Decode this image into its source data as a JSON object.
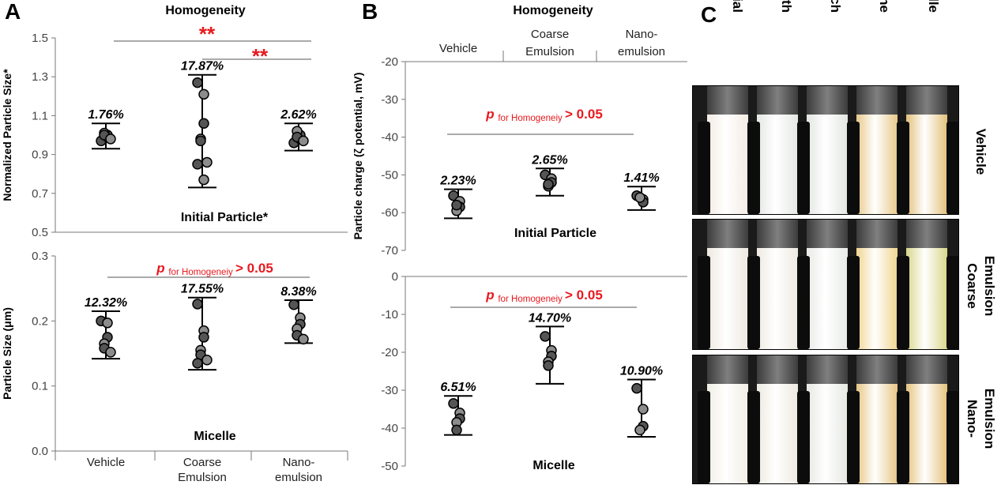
{
  "panel_letters": [
    "A",
    "B",
    "C"
  ],
  "significance_marks": [
    "**",
    "**"
  ],
  "p_annotation": {
    "p": "p",
    "sub": "for Homogeneiy",
    "rest": "> 0.05"
  },
  "colors": {
    "significance": "#e8191e",
    "point_fill": "#8c8c8c",
    "point_fill_dark": "#555555",
    "axis": "#333333"
  },
  "photo": {
    "columns": [
      "Initial",
      "Mouth",
      "Stomach",
      "Intestine",
      "Micelle"
    ],
    "rows": [
      {
        "label": "Vehicle",
        "tube_colors": [
          "#f4ebe4",
          "#e4e7e4",
          "#e2e6e2",
          "#e8c98a",
          "#e2c07a"
        ]
      },
      {
        "label": "Coarse Emulsion",
        "tube_colors": [
          "#eee8df",
          "#eeeae2",
          "#e9ebe8",
          "#f0d590",
          "#d8d68a"
        ]
      },
      {
        "label": "Nano-Emulsion",
        "tube_colors": [
          "#f1eee4",
          "#eceae0",
          "#e6e8e2",
          "#e6c685",
          "#e5c27d"
        ]
      }
    ]
  },
  "chart_data": [
    {
      "panel": "A-top",
      "type": "scatter",
      "title": "Homogeneity",
      "subtitle": "Initial Particle*",
      "ylabel": "Normalized Particle Size*",
      "categories": [
        "Vehicle",
        "Coarse Emulsion",
        "Nano-emulsion"
      ],
      "ylim": [
        0.5,
        1.5
      ],
      "yticks": [
        "0.5",
        "0.7",
        "0.9",
        "1.1",
        "1.3",
        "1.5"
      ],
      "series": [
        {
          "category": "Vehicle",
          "cv_label": "1.76%",
          "mean": 1.0,
          "err_low": 0.93,
          "err_high": 1.06,
          "points": [
            0.97,
            0.99,
            1.0,
            1.01,
            1.0,
            0.98
          ]
        },
        {
          "category": "Coarse Emulsion",
          "cv_label": "17.87%",
          "mean": 1.0,
          "err_low": 0.73,
          "err_high": 1.31,
          "points": [
            1.27,
            1.21,
            1.06,
            0.98,
            0.97,
            0.86,
            0.85,
            0.77
          ]
        },
        {
          "category": "Nano-emulsion",
          "cv_label": "2.62%",
          "mean": 1.0,
          "err_low": 0.92,
          "err_high": 1.06,
          "points": [
            0.96,
            0.98,
            1.0,
            1.02,
            0.99,
            0.97
          ]
        }
      ],
      "significance": [
        {
          "from": "Vehicle",
          "to": "Nano-emulsion",
          "y": 1.48,
          "label": "**"
        },
        {
          "from": "Coarse Emulsion",
          "to": "Nano-emulsion",
          "y": 1.39,
          "label": "**"
        }
      ]
    },
    {
      "panel": "A-bottom",
      "type": "scatter",
      "subtitle": "Micelle",
      "ylabel": "Particle Size (μm)",
      "categories": [
        "Vehicle",
        "Coarse Emulsion",
        "Nano-emulsion"
      ],
      "ylim": [
        0.0,
        0.3
      ],
      "yticks": [
        "0.0",
        "0.1",
        "0.2",
        "0.3"
      ],
      "series": [
        {
          "category": "Vehicle",
          "cv_label": "12.32%",
          "mean": 0.18,
          "err_low": 0.142,
          "err_high": 0.215,
          "points": [
            0.2,
            0.197,
            0.175,
            0.165,
            0.158,
            0.152
          ]
        },
        {
          "category": "Coarse Emulsion",
          "cv_label": "17.55%",
          "mean": 0.176,
          "err_low": 0.125,
          "err_high": 0.236,
          "points": [
            0.226,
            0.185,
            0.175,
            0.155,
            0.148,
            0.14,
            0.135
          ]
        },
        {
          "category": "Nano-emulsion",
          "cv_label": "8.38%",
          "mean": 0.2,
          "err_low": 0.166,
          "err_high": 0.232,
          "points": [
            0.225,
            0.205,
            0.195,
            0.188,
            0.178,
            0.172
          ]
        }
      ],
      "p_line": {
        "from": "Vehicle",
        "to": "Nano-emulsion",
        "y": 0.263
      }
    },
    {
      "panel": "B-top",
      "type": "scatter",
      "title": "Homogeneity",
      "subtitle": "Initial Particle",
      "ylabel": "Particle charge (ζ potential, mV)",
      "categories": [
        "Vehicle",
        "Coarse Emulsion",
        "Nano-emulsion"
      ],
      "ylim": [
        -70,
        -20
      ],
      "yticks": [
        "-70",
        "-60",
        "-50",
        "-40",
        "-30",
        "-20"
      ],
      "series": [
        {
          "category": "Vehicle",
          "cv_label": "2.23%",
          "mean": -57.5,
          "err_low": -61.5,
          "err_high": -53.8,
          "points": [
            -55.5,
            -57.0,
            -58.5,
            -59.5,
            -58.0
          ]
        },
        {
          "category": "Coarse Emulsion",
          "cv_label": "2.65%",
          "mean": -51.8,
          "err_low": -55.5,
          "err_high": -48.3,
          "points": [
            -50.0,
            -51.0,
            -52.0,
            -53.0,
            -52.5
          ]
        },
        {
          "category": "Nano-emulsion",
          "cv_label": "1.41%",
          "mean": -56.2,
          "err_low": -59.3,
          "err_high": -53.1,
          "points": [
            -55.5,
            -56.5,
            -57.2,
            -56.0
          ]
        }
      ],
      "p_line": {
        "from": "Vehicle",
        "to": "Nano-emulsion",
        "y": -39.8
      }
    },
    {
      "panel": "B-bottom",
      "type": "scatter",
      "subtitle": "Micelle",
      "categories": [
        "Vehicle",
        "Coarse Emulsion",
        "Nano-emulsion"
      ],
      "ylim": [
        -50,
        0
      ],
      "yticks": [
        "-50",
        "-40",
        "-30",
        "-20",
        "-10",
        "0"
      ],
      "series": [
        {
          "category": "Vehicle",
          "cv_label": "6.51%",
          "mean": -37,
          "err_low": -41.8,
          "err_high": -31.5,
          "points": [
            -33.5,
            -36.0,
            -37.5,
            -38.5,
            -40.5
          ]
        },
        {
          "category": "Coarse Emulsion",
          "cv_label": "14.70%",
          "mean": -20.5,
          "err_low": -28.3,
          "err_high": -13.2,
          "points": [
            -15.8,
            -19.5,
            -21.0,
            -22.5,
            -23.5
          ]
        },
        {
          "category": "Nano-emulsion",
          "cv_label": "10.90%",
          "mean": -35,
          "err_low": -42.3,
          "err_high": -27.2,
          "points": [
            -29.5,
            -35.0,
            -39.5,
            -40.5
          ]
        }
      ],
      "p_line": {
        "from": "Vehicle",
        "to": "Nano-emulsion",
        "y": -7.0
      }
    }
  ]
}
